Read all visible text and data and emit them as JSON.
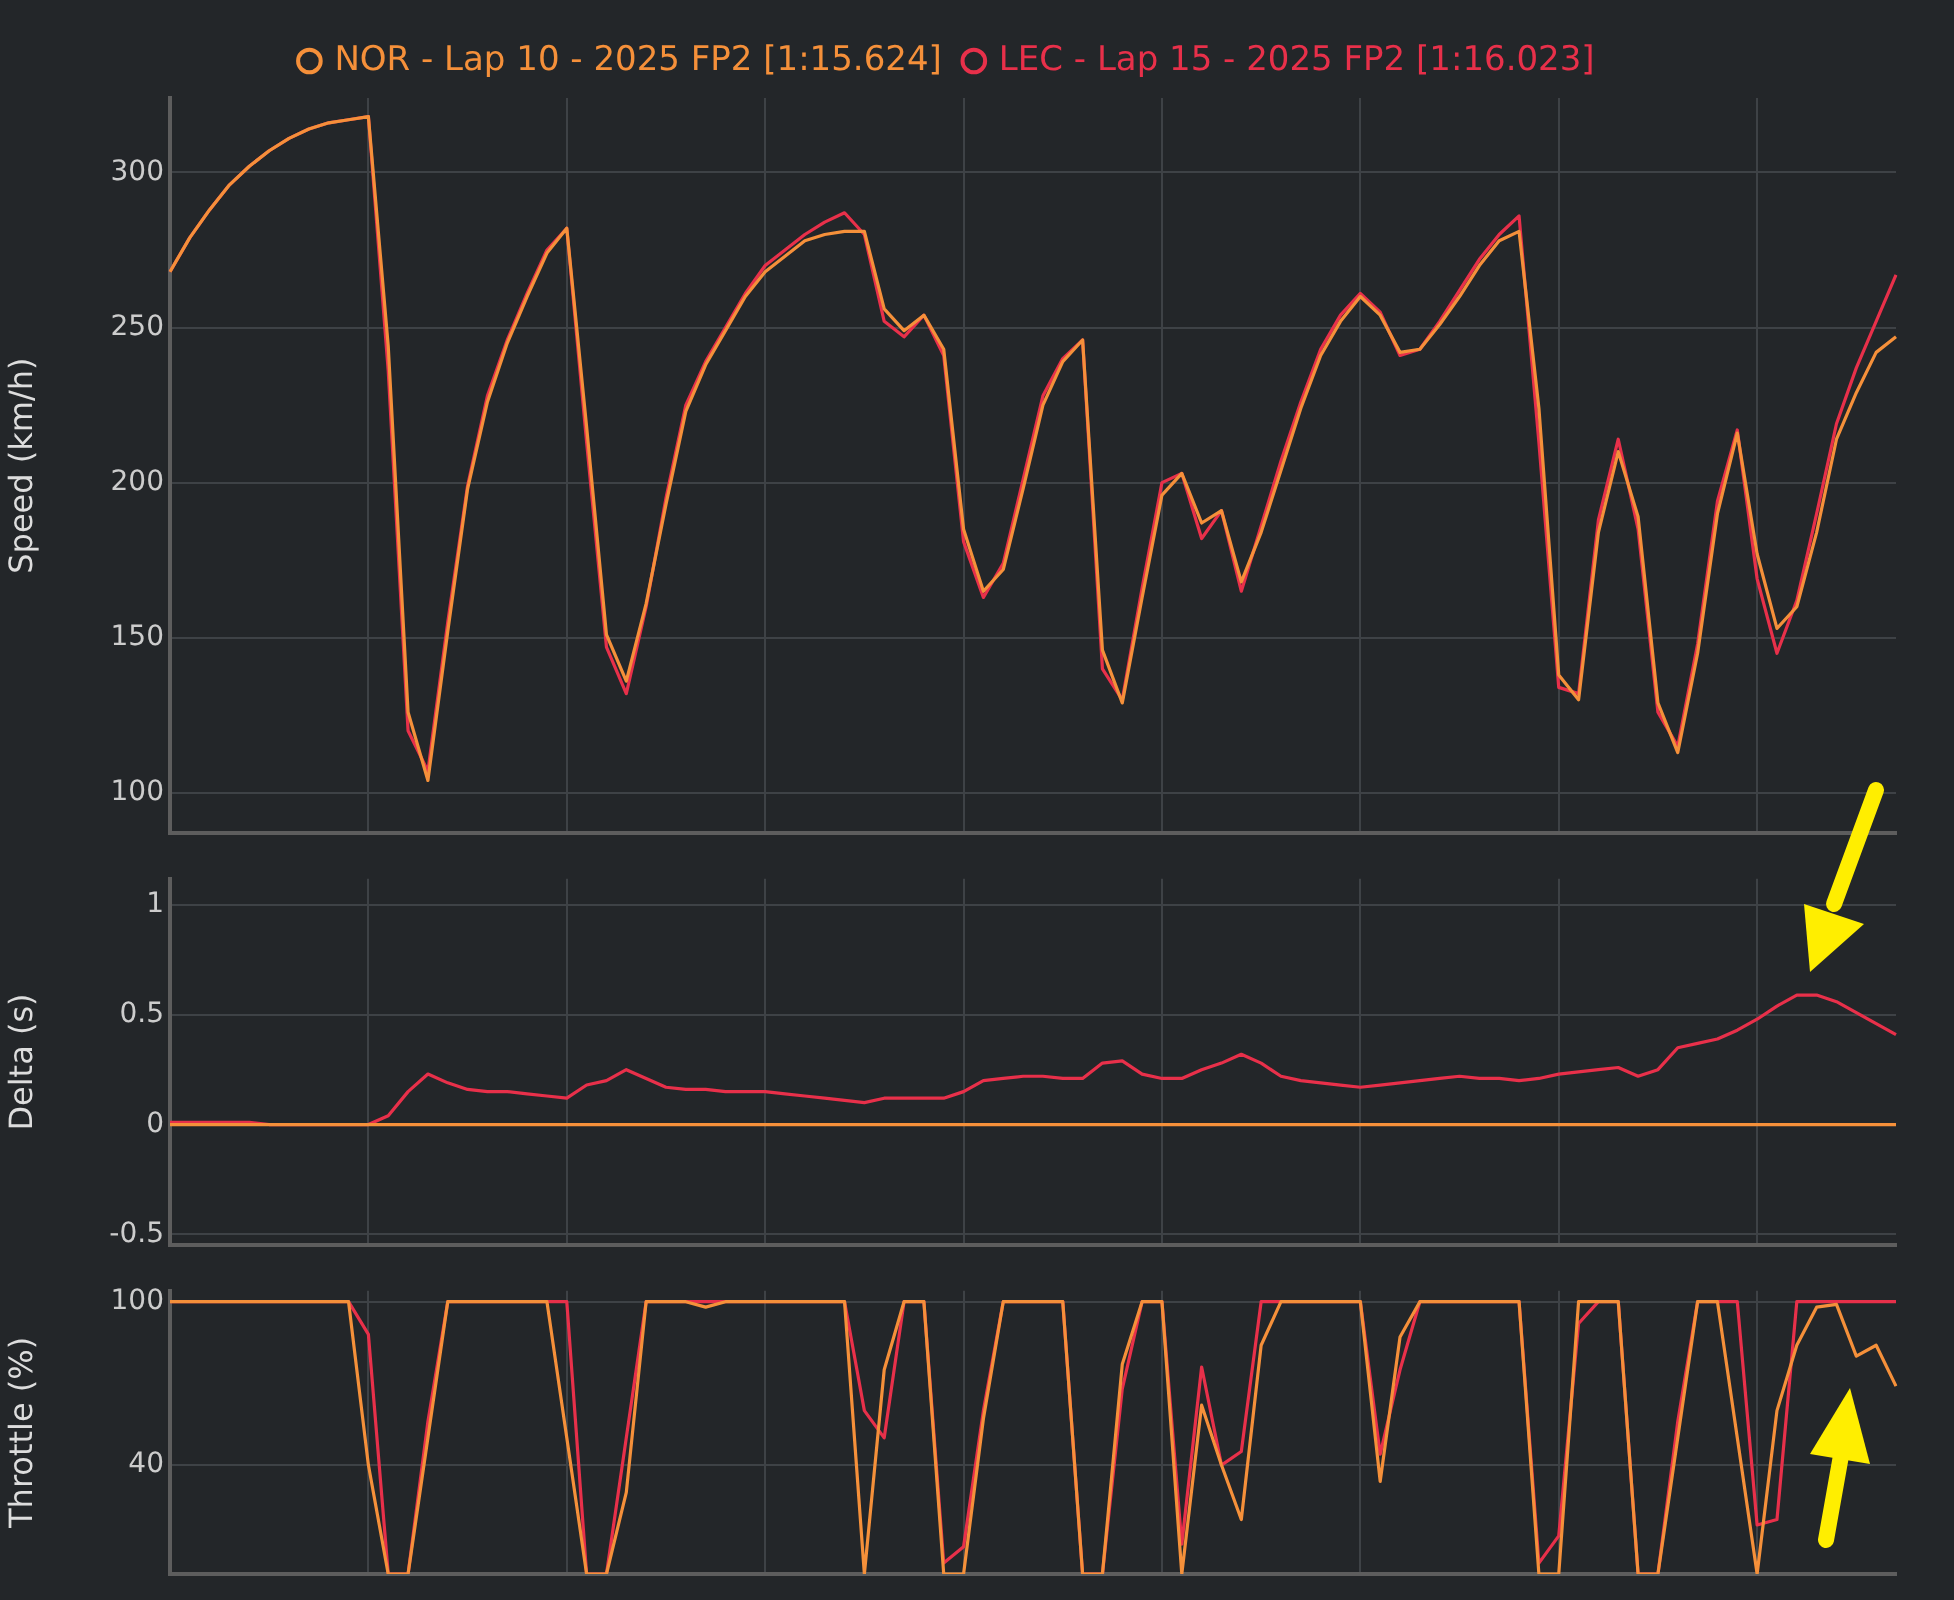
{
  "chart_data": [
    {
      "type": "line",
      "ylabel": "Speed (km/h)",
      "categories": [
        null,
        null,
        null,
        null,
        null,
        null,
        null,
        null,
        null,
        null,
        null,
        null,
        null,
        null,
        null,
        null,
        null,
        null,
        null,
        null,
        null,
        null,
        null,
        null,
        null,
        null,
        null,
        null,
        null,
        null,
        null,
        null,
        null,
        null,
        null,
        null,
        null,
        null,
        null,
        null,
        null,
        null,
        null,
        null,
        null,
        null,
        null,
        null,
        null,
        null,
        null,
        null,
        null,
        null,
        null,
        null,
        null,
        null,
        null,
        null,
        null,
        null,
        null,
        null,
        null,
        null,
        null,
        null,
        null,
        null,
        null,
        null,
        null,
        null,
        null,
        null,
        null,
        null,
        null,
        null,
        null,
        null,
        null,
        null,
        null,
        null,
        null,
        null
      ],
      "ylim": [
        87,
        324
      ],
      "yticks": [
        100,
        150,
        200,
        250,
        300
      ],
      "grid": true,
      "tick_labels": "y",
      "legend": "top",
      "marker": "none",
      "series": [
        {
          "name": "NOR - Lap 10 - 2025 FP2 [1:15.624]",
          "color": "#f5903a",
          "values": [
            268,
            279,
            288,
            296,
            302,
            307,
            311,
            314,
            316,
            317,
            318,
            244,
            126,
            104,
            152,
            198,
            226,
            245,
            260,
            274,
            282,
            218,
            151,
            136,
            161,
            193,
            223,
            238,
            249,
            260,
            268,
            273,
            278,
            280,
            281,
            281,
            256,
            249,
            254,
            243,
            185,
            165,
            172,
            198,
            225,
            239,
            246,
            146,
            129,
            163,
            196,
            203,
            187,
            191,
            168,
            184,
            204,
            224,
            241,
            252,
            260,
            254,
            242,
            243,
            251,
            260,
            270,
            278,
            281,
            224,
            138,
            130,
            184,
            210,
            189,
            129,
            113,
            145,
            190,
            216,
            177,
            153,
            160,
            184,
            214,
            229,
            242,
            247
          ]
        },
        {
          "name": "LEC - Lap 15 - 2025 FP2 [1:16.023]",
          "color": "#e8304a",
          "values": [
            268,
            279,
            288,
            296,
            302,
            307,
            311,
            314,
            316,
            317,
            318,
            236,
            120,
            107,
            155,
            199,
            228,
            246,
            261,
            275,
            282,
            213,
            147,
            132,
            160,
            195,
            225,
            239,
            250,
            261,
            270,
            275,
            280,
            284,
            287,
            280,
            252,
            247,
            254,
            241,
            181,
            163,
            174,
            201,
            228,
            240,
            246,
            140,
            130,
            166,
            200,
            203,
            182,
            191,
            165,
            186,
            207,
            226,
            243,
            254,
            261,
            255,
            241,
            243,
            252,
            262,
            272,
            280,
            286,
            213,
            134,
            132,
            188,
            214,
            185,
            126,
            115,
            148,
            194,
            217,
            169,
            145,
            162,
            190,
            219,
            237,
            252,
            267
          ]
        }
      ]
    },
    {
      "type": "line",
      "ylabel": "Delta (s)",
      "categories": [
        null,
        null,
        null,
        null,
        null,
        null,
        null,
        null,
        null,
        null,
        null,
        null,
        null,
        null,
        null,
        null,
        null,
        null,
        null,
        null,
        null,
        null,
        null,
        null,
        null,
        null,
        null,
        null,
        null,
        null,
        null,
        null,
        null,
        null,
        null,
        null,
        null,
        null,
        null,
        null,
        null,
        null,
        null,
        null,
        null,
        null,
        null,
        null,
        null,
        null,
        null,
        null,
        null,
        null,
        null,
        null,
        null,
        null,
        null,
        null,
        null,
        null,
        null,
        null,
        null,
        null,
        null,
        null,
        null,
        null,
        null,
        null,
        null,
        null,
        null,
        null,
        null,
        null,
        null,
        null,
        null,
        null,
        null,
        null,
        null,
        null,
        null,
        null
      ],
      "ylim": [
        -0.55,
        1.12
      ],
      "yticks": [
        -0.5,
        0,
        0.5,
        1
      ],
      "grid": true,
      "tick_labels": "y",
      "marker": "none",
      "series": [
        {
          "color": "#f5903a",
          "values": [
            0,
            0,
            0,
            0,
            0,
            0,
            0,
            0,
            0,
            0,
            0,
            0,
            0,
            0,
            0,
            0,
            0,
            0,
            0,
            0,
            0,
            0,
            0,
            0,
            0,
            0,
            0,
            0,
            0,
            0,
            0,
            0,
            0,
            0,
            0,
            0,
            0,
            0,
            0,
            0,
            0,
            0,
            0,
            0,
            0,
            0,
            0,
            0,
            0,
            0,
            0,
            0,
            0,
            0,
            0,
            0,
            0,
            0,
            0,
            0,
            0,
            0,
            0,
            0,
            0,
            0,
            0,
            0,
            0,
            0,
            0,
            0,
            0,
            0,
            0,
            0,
            0,
            0,
            0,
            0,
            0,
            0,
            0,
            0,
            0,
            0,
            0,
            0
          ]
        },
        {
          "color": "#e8304a",
          "values": [
            0.01,
            0.01,
            0.01,
            0.01,
            0.01,
            0,
            0,
            0,
            0,
            0,
            0,
            0.04,
            0.15,
            0.23,
            0.19,
            0.16,
            0.15,
            0.15,
            0.14,
            0.13,
            0.12,
            0.18,
            0.2,
            0.25,
            0.21,
            0.17,
            0.16,
            0.16,
            0.15,
            0.15,
            0.15,
            0.14,
            0.13,
            0.12,
            0.11,
            0.1,
            0.12,
            0.12,
            0.12,
            0.12,
            0.15,
            0.2,
            0.21,
            0.22,
            0.22,
            0.21,
            0.21,
            0.28,
            0.29,
            0.23,
            0.21,
            0.21,
            0.25,
            0.28,
            0.32,
            0.28,
            0.22,
            0.2,
            0.19,
            0.18,
            0.17,
            0.18,
            0.19,
            0.2,
            0.21,
            0.22,
            0.21,
            0.21,
            0.2,
            0.21,
            0.23,
            0.24,
            0.25,
            0.26,
            0.22,
            0.25,
            0.35,
            0.37,
            0.39,
            0.43,
            0.48,
            0.54,
            0.59,
            0.59,
            0.56,
            0.51,
            0.46,
            0.41
          ]
        }
      ]
    },
    {
      "type": "line",
      "ylabel": "Throttle (%)",
      "categories": [
        null,
        null,
        null,
        null,
        null,
        null,
        null,
        null,
        null,
        null,
        null,
        null,
        null,
        null,
        null,
        null,
        null,
        null,
        null,
        null,
        null,
        null,
        null,
        null,
        null,
        null,
        null,
        null,
        null,
        null,
        null,
        null,
        null,
        null,
        null,
        null,
        null,
        null,
        null,
        null,
        null,
        null,
        null,
        null,
        null,
        null,
        null,
        null,
        null,
        null,
        null,
        null,
        null,
        null,
        null,
        null,
        null,
        null,
        null,
        null,
        null,
        null,
        null,
        null,
        null,
        null,
        null,
        null,
        null,
        null,
        null,
        null,
        null,
        null,
        null,
        null,
        null,
        null,
        null,
        null,
        null,
        null,
        null,
        null,
        null,
        null,
        null,
        null
      ],
      "ylim": [
        0,
        104
      ],
      "yticks": [
        40,
        100
      ],
      "grid": true,
      "tick_labels": "y",
      "marker": "none",
      "series": [
        {
          "color": "#f5903a",
          "values": [
            100,
            100,
            100,
            100,
            100,
            100,
            100,
            100,
            100,
            100,
            40,
            0,
            0,
            50,
            100,
            100,
            100,
            100,
            100,
            100,
            50,
            0,
            0,
            30,
            100,
            100,
            100,
            98,
            100,
            100,
            100,
            100,
            100,
            100,
            100,
            0,
            75,
            100,
            100,
            0,
            0,
            57,
            100,
            100,
            100,
            100,
            0,
            0,
            77,
            100,
            100,
            0,
            62,
            40,
            20,
            84,
            100,
            100,
            100,
            100,
            100,
            34,
            87,
            100,
            100,
            100,
            100,
            100,
            100,
            0,
            0,
            100,
            100,
            100,
            0,
            0,
            50,
            100,
            100,
            50,
            0,
            60,
            84,
            98,
            99,
            80,
            84,
            69
          ]
        },
        {
          "color": "#e8304a",
          "values": [
            100,
            100,
            100,
            100,
            100,
            100,
            100,
            100,
            100,
            100,
            88,
            0,
            0,
            56,
            100,
            100,
            100,
            100,
            100,
            100,
            100,
            0,
            0,
            50,
            100,
            100,
            100,
            100,
            100,
            100,
            100,
            100,
            100,
            100,
            100,
            60,
            50,
            100,
            100,
            4,
            10,
            60,
            100,
            100,
            100,
            100,
            0,
            0,
            68,
            100,
            100,
            11,
            76,
            40,
            45,
            100,
            100,
            100,
            100,
            100,
            100,
            44,
            75,
            100,
            100,
            100,
            100,
            100,
            100,
            4,
            14,
            92,
            100,
            100,
            0,
            0,
            56,
            100,
            100,
            100,
            18,
            20,
            100,
            100,
            100,
            100,
            100,
            100
          ]
        }
      ]
    }
  ]
}
